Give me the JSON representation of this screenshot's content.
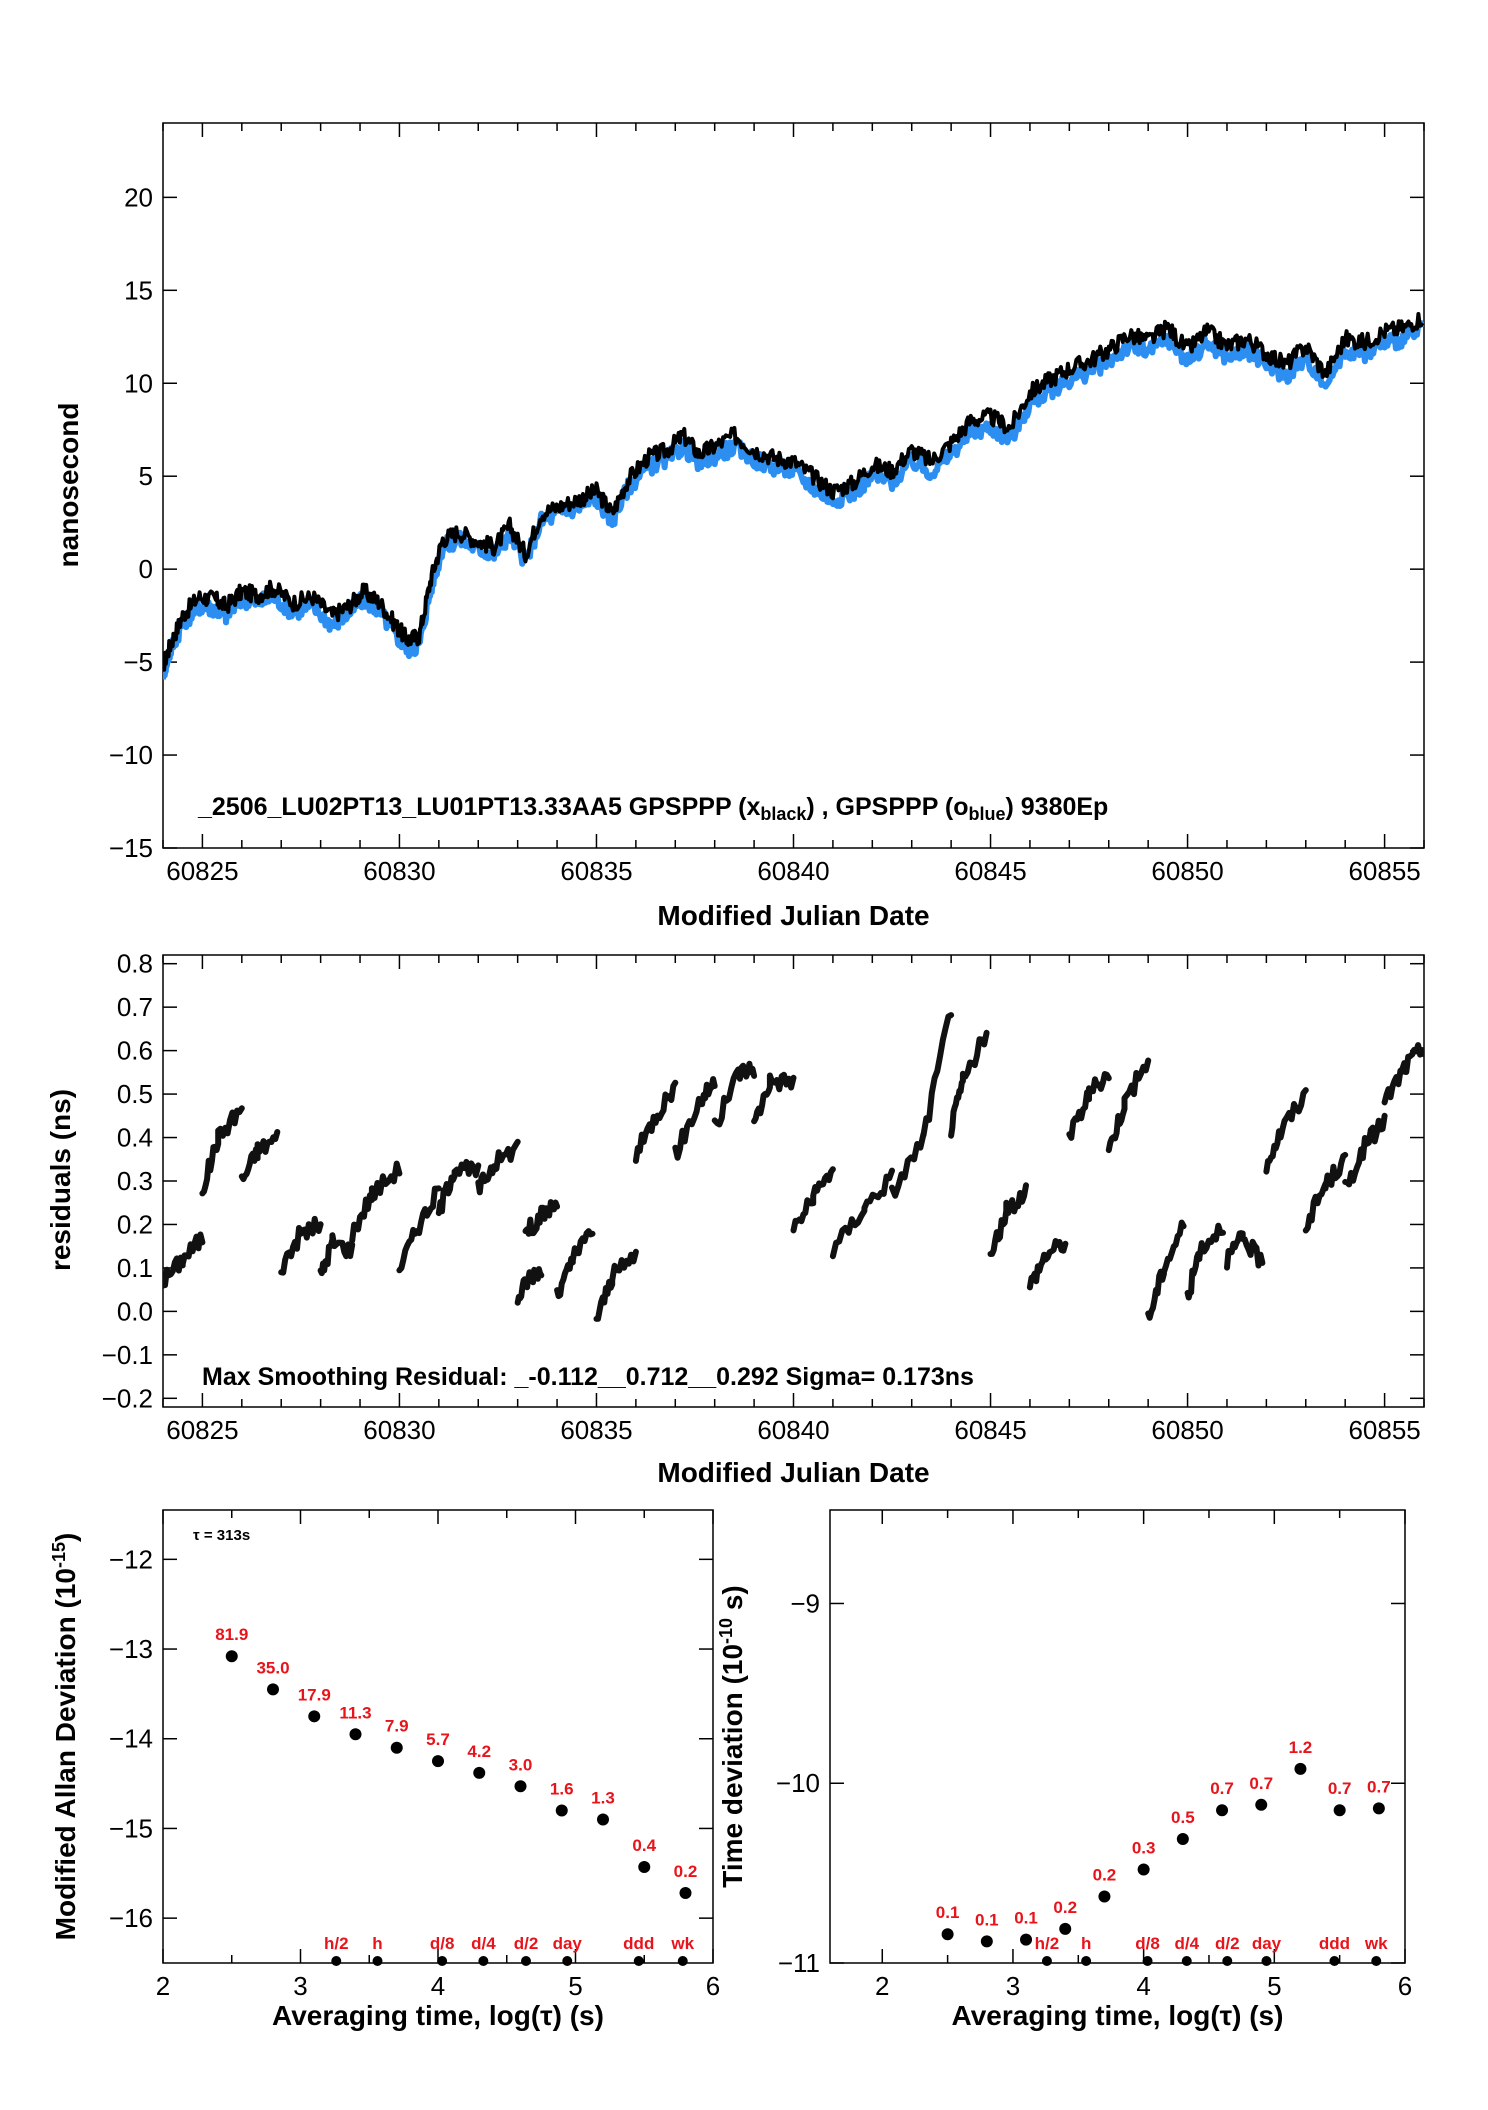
{
  "chart_data": [
    {
      "type": "line",
      "xlabel": "Modified Julian Date",
      "ylabel": "nanosecond",
      "xlim": [
        60824,
        60856
      ],
      "ylim": [
        -15,
        24
      ],
      "xticks": [
        60825,
        60830,
        60835,
        60840,
        60845,
        60850,
        60855
      ],
      "yticks": [
        -15,
        -10,
        -5,
        0,
        5,
        10,
        15,
        20
      ],
      "annotation": {
        "prefix": "_2506_LU02PT13_LU01PT13.33AA5     GPSPPP (x",
        "sub1": "black",
        "middle": ") ,  GPSPPP (o",
        "sub2": "blue",
        "suffix": ")  9380Ep"
      },
      "colors": {
        "black_series": "#000000",
        "blue_series": "#2b8ef0"
      },
      "series": [
        {
          "marker": "x",
          "color": "#000000",
          "x": [
            60824.0,
            60824.2,
            60824.5,
            60824.9,
            60825.3,
            60825.6,
            60826.0,
            60826.4,
            60826.8,
            60827.3,
            60827.8,
            60828.3,
            60828.7,
            60829.1,
            60829.5,
            60829.9,
            60830.2,
            60830.5,
            60830.8,
            60831.1,
            60831.5,
            60832.0,
            60832.4,
            60832.8,
            60833.2,
            60833.6,
            60834.1,
            60834.6,
            60835.0,
            60835.4,
            60835.8,
            60836.3,
            60836.8,
            60837.2,
            60837.6,
            60838.0,
            60838.5,
            60839.0,
            60839.5,
            60840.0,
            60840.5,
            60841.0,
            60841.5,
            60842.0,
            60842.5,
            60843.0,
            60843.5,
            60844.0,
            60844.5,
            60845.0,
            60845.5,
            60846.0,
            60846.5,
            60847.0,
            60847.5,
            60848.0,
            60848.5,
            60849.0,
            60849.5,
            60850.0,
            60850.5,
            60851.0,
            60851.5,
            60852.0,
            60852.5,
            60853.0,
            60853.5,
            60854.0,
            60854.5,
            60855.0,
            60855.5,
            60856.0
          ],
          "y": [
            -5.2,
            -4.0,
            -2.5,
            -1.5,
            -1.6,
            -2.0,
            -1.2,
            -1.4,
            -1.0,
            -1.8,
            -1.5,
            -2.5,
            -2.0,
            -1.2,
            -1.8,
            -3.0,
            -3.8,
            -3.6,
            -0.5,
            1.6,
            2.0,
            1.5,
            1.2,
            2.3,
            0.8,
            3.0,
            3.4,
            3.8,
            4.2,
            3.0,
            4.8,
            6.0,
            6.4,
            7.2,
            6.2,
            6.6,
            7.2,
            6.4,
            6.0,
            5.8,
            5.0,
            4.2,
            4.6,
            5.6,
            5.3,
            6.4,
            5.8,
            6.8,
            8.0,
            8.2,
            7.6,
            9.5,
            10.2,
            10.8,
            11.2,
            11.8,
            12.6,
            12.3,
            13.0,
            11.8,
            12.8,
            12.0,
            12.4,
            11.6,
            11.0,
            12.0,
            10.5,
            12.4,
            12.2,
            12.8,
            13.0,
            13.6
          ]
        },
        {
          "marker": "o",
          "color": "#2b8ef0",
          "x": [
            60824.0,
            60824.2,
            60824.5,
            60824.9,
            60825.3,
            60825.6,
            60826.0,
            60826.4,
            60826.8,
            60827.3,
            60827.8,
            60828.3,
            60828.7,
            60829.1,
            60829.5,
            60829.9,
            60830.2,
            60830.5,
            60830.8,
            60831.1,
            60831.5,
            60832.0,
            60832.4,
            60832.8,
            60833.2,
            60833.6,
            60834.1,
            60834.6,
            60835.0,
            60835.4,
            60835.8,
            60836.3,
            60836.8,
            60837.2,
            60837.6,
            60838.0,
            60838.5,
            60839.0,
            60839.5,
            60840.0,
            60840.5,
            60841.0,
            60841.5,
            60842.0,
            60842.5,
            60843.0,
            60843.5,
            60844.0,
            60844.5,
            60845.0,
            60845.5,
            60846.0,
            60846.5,
            60847.0,
            60847.5,
            60848.0,
            60848.5,
            60849.0,
            60849.5,
            60850.0,
            60850.5,
            60851.0,
            60851.5,
            60852.0,
            60852.5,
            60853.0,
            60853.5,
            60854.0,
            60854.5,
            60855.0,
            60855.5,
            60856.0
          ],
          "y": [
            -5.6,
            -4.3,
            -2.9,
            -2.0,
            -2.1,
            -2.5,
            -1.6,
            -1.8,
            -1.5,
            -2.3,
            -2.0,
            -3.0,
            -2.4,
            -1.6,
            -2.3,
            -3.5,
            -4.3,
            -4.1,
            -1.0,
            1.2,
            1.6,
            1.1,
            0.8,
            1.9,
            0.4,
            2.6,
            3.0,
            3.4,
            3.8,
            2.6,
            4.4,
            5.5,
            5.9,
            6.6,
            5.7,
            6.1,
            6.6,
            5.9,
            5.5,
            5.3,
            4.4,
            3.7,
            4.1,
            5.0,
            4.7,
            5.8,
            5.2,
            6.2,
            7.4,
            7.6,
            7.0,
            8.9,
            9.6,
            10.2,
            10.6,
            11.2,
            12.0,
            11.7,
            12.4,
            11.2,
            12.2,
            11.4,
            11.8,
            11.0,
            10.4,
            11.4,
            9.9,
            11.8,
            11.6,
            12.2,
            12.4,
            13.0
          ]
        }
      ]
    },
    {
      "type": "scatter",
      "xlabel": "Modified Julian Date",
      "ylabel": "residuals (ns)",
      "xlim": [
        60824,
        60856
      ],
      "ylim": [
        -0.22,
        0.82
      ],
      "xticks": [
        60825,
        60830,
        60835,
        60840,
        60845,
        60850,
        60855
      ],
      "yticks": [
        -0.2,
        -0.1,
        0.0,
        0.1,
        0.2,
        0.3,
        0.4,
        0.5,
        0.6,
        0.7,
        0.8
      ],
      "ytick_labels": [
        "−0.2",
        "−0.1",
        "0.0",
        "0.1",
        "0.2",
        "0.3",
        "0.4",
        "0.5",
        "0.6",
        "0.7",
        "0.8"
      ],
      "annotation": "Max Smoothing Residual: _-0.112__0.712__0.292  Sigma= 0.173ns",
      "marker": "x",
      "color": "#000000",
      "segments": [
        [
          [
            60824.0,
            0.07
          ],
          [
            60824.5,
            0.12
          ],
          [
            60825.0,
            0.17
          ]
        ],
        [
          [
            60825.0,
            0.28
          ],
          [
            60825.4,
            0.4
          ],
          [
            60826.0,
            0.47
          ]
        ],
        [
          [
            60826.0,
            0.3
          ],
          [
            60826.4,
            0.37
          ],
          [
            60826.9,
            0.4
          ]
        ],
        [
          [
            60827.0,
            0.1
          ],
          [
            60827.5,
            0.18
          ],
          [
            60828.0,
            0.2
          ]
        ],
        [
          [
            60828.0,
            0.08
          ],
          [
            60828.3,
            0.16
          ],
          [
            60828.8,
            0.14
          ]
        ],
        [
          [
            60828.8,
            0.18
          ],
          [
            60829.3,
            0.27
          ],
          [
            60830.0,
            0.33
          ]
        ],
        [
          [
            60830.0,
            0.1
          ],
          [
            60830.5,
            0.2
          ],
          [
            60831.0,
            0.28
          ]
        ],
        [
          [
            60831.0,
            0.23
          ],
          [
            60831.4,
            0.33
          ],
          [
            60832.0,
            0.32
          ]
        ],
        [
          [
            60832.0,
            0.28
          ],
          [
            60832.4,
            0.34
          ],
          [
            60833.0,
            0.38
          ]
        ],
        [
          [
            60833.0,
            0.03
          ],
          [
            60833.3,
            0.08
          ],
          [
            60833.6,
            0.1
          ]
        ],
        [
          [
            60833.2,
            0.18
          ],
          [
            60833.6,
            0.22
          ],
          [
            60834.0,
            0.25
          ]
        ],
        [
          [
            60834.0,
            0.03
          ],
          [
            60834.4,
            0.12
          ],
          [
            60834.9,
            0.19
          ]
        ],
        [
          [
            60835.0,
            -0.02
          ],
          [
            60835.4,
            0.08
          ],
          [
            60836.0,
            0.13
          ]
        ],
        [
          [
            60836.0,
            0.36
          ],
          [
            60836.5,
            0.45
          ],
          [
            60837.0,
            0.52
          ]
        ],
        [
          [
            60837.0,
            0.36
          ],
          [
            60837.6,
            0.48
          ],
          [
            60838.0,
            0.53
          ]
        ],
        [
          [
            60838.0,
            0.42
          ],
          [
            60838.6,
            0.55
          ],
          [
            60839.0,
            0.56
          ]
        ],
        [
          [
            60839.0,
            0.43
          ],
          [
            60839.4,
            0.53
          ],
          [
            60840.0,
            0.53
          ]
        ],
        [
          [
            60840.0,
            0.19
          ],
          [
            60840.5,
            0.26
          ],
          [
            60841.0,
            0.33
          ]
        ],
        [
          [
            60841.0,
            0.14
          ],
          [
            60841.8,
            0.24
          ],
          [
            60842.5,
            0.31
          ]
        ],
        [
          [
            60842.5,
            0.27
          ],
          [
            60843.3,
            0.4
          ],
          [
            60844.0,
            0.7
          ]
        ],
        [
          [
            60844.0,
            0.42
          ],
          [
            60844.3,
            0.53
          ],
          [
            60844.9,
            0.64
          ]
        ],
        [
          [
            60845.0,
            0.12
          ],
          [
            60845.4,
            0.23
          ],
          [
            60845.9,
            0.28
          ]
        ],
        [
          [
            60846.0,
            0.06
          ],
          [
            60846.4,
            0.13
          ],
          [
            60846.9,
            0.16
          ]
        ],
        [
          [
            60847.0,
            0.4
          ],
          [
            60847.5,
            0.5
          ],
          [
            60848.0,
            0.55
          ]
        ],
        [
          [
            60848.0,
            0.37
          ],
          [
            60848.4,
            0.48
          ],
          [
            60849.0,
            0.58
          ]
        ],
        [
          [
            60849.0,
            -0.02
          ],
          [
            60849.4,
            0.1
          ],
          [
            60849.9,
            0.2
          ]
        ],
        [
          [
            60850.0,
            0.03
          ],
          [
            60850.3,
            0.14
          ],
          [
            60850.9,
            0.2
          ]
        ],
        [
          [
            60851.0,
            0.12
          ],
          [
            60851.4,
            0.17
          ],
          [
            60851.9,
            0.11
          ]
        ],
        [
          [
            60852.0,
            0.34
          ],
          [
            60852.4,
            0.42
          ],
          [
            60853.0,
            0.5
          ]
        ],
        [
          [
            60853.0,
            0.2
          ],
          [
            60853.5,
            0.29
          ],
          [
            60854.0,
            0.35
          ]
        ],
        [
          [
            60854.0,
            0.28
          ],
          [
            60854.5,
            0.38
          ],
          [
            60855.0,
            0.44
          ]
        ],
        [
          [
            60855.0,
            0.48
          ],
          [
            60855.5,
            0.56
          ],
          [
            60856.0,
            0.61
          ]
        ]
      ]
    },
    {
      "type": "scatter",
      "xlabel": "Averaging time, log(τ) (s)",
      "ylabel_main": "Modified Allan Deviation (10",
      "ylabel_sup": "-15",
      "ylabel_end": ")",
      "xlim": [
        2,
        6
      ],
      "ylim": [
        -16.5,
        -11.45
      ],
      "xticks": [
        2,
        3,
        4,
        5,
        6
      ],
      "yticks": [
        -16,
        -15,
        -14,
        -13,
        -12
      ],
      "ytick_labels": [
        "−16",
        "−15",
        "−14",
        "−13",
        "−12"
      ],
      "tau_note": "τ = 313s",
      "points": [
        {
          "x": 2.5,
          "y": -13.08,
          "label": "81.9"
        },
        {
          "x": 2.8,
          "y": -13.45,
          "label": "35.0"
        },
        {
          "x": 3.1,
          "y": -13.75,
          "label": "17.9"
        },
        {
          "x": 3.4,
          "y": -13.95,
          "label": "11.3"
        },
        {
          "x": 3.7,
          "y": -14.1,
          "label": "7.9"
        },
        {
          "x": 4.0,
          "y": -14.25,
          "label": "5.7"
        },
        {
          "x": 4.3,
          "y": -14.38,
          "label": "4.2"
        },
        {
          "x": 4.6,
          "y": -14.53,
          "label": "3.0"
        },
        {
          "x": 4.9,
          "y": -14.8,
          "label": "1.6"
        },
        {
          "x": 5.2,
          "y": -14.9,
          "label": "1.3"
        },
        {
          "x": 5.5,
          "y": -15.43,
          "label": "0.4"
        },
        {
          "x": 5.8,
          "y": -15.72,
          "label": "0.2"
        }
      ],
      "interval_marks": [
        {
          "x": 3.26,
          "label": "h/2"
        },
        {
          "x": 3.56,
          "label": "h"
        },
        {
          "x": 4.03,
          "label": "d/8"
        },
        {
          "x": 4.33,
          "label": "d/4"
        },
        {
          "x": 4.64,
          "label": "d/2"
        },
        {
          "x": 4.94,
          "label": "day"
        },
        {
          "x": 5.46,
          "label": "ddd"
        },
        {
          "x": 5.78,
          "label": "wk"
        }
      ]
    },
    {
      "type": "scatter",
      "xlabel": "Averaging time, log(τ) (s)",
      "ylabel_main": "Time deviation (10",
      "ylabel_sup": "-10",
      "ylabel_end": " s)",
      "xlim": [
        1.6,
        6
      ],
      "ylim": [
        -11,
        -8.48
      ],
      "xticks": [
        2,
        3,
        4,
        5,
        6
      ],
      "yticks": [
        -11,
        -10,
        -9
      ],
      "ytick_labels": [
        "−11",
        "−10",
        "−9"
      ],
      "points": [
        {
          "x": 2.5,
          "y": -10.84,
          "label": "0.1"
        },
        {
          "x": 2.8,
          "y": -10.88,
          "label": "0.1"
        },
        {
          "x": 3.1,
          "y": -10.87,
          "label": "0.1"
        },
        {
          "x": 3.4,
          "y": -10.81,
          "label": "0.2"
        },
        {
          "x": 3.7,
          "y": -10.63,
          "label": "0.2"
        },
        {
          "x": 4.0,
          "y": -10.48,
          "label": "0.3"
        },
        {
          "x": 4.3,
          "y": -10.31,
          "label": "0.5"
        },
        {
          "x": 4.6,
          "y": -10.15,
          "label": "0.7"
        },
        {
          "x": 4.9,
          "y": -10.12,
          "label": "0.7"
        },
        {
          "x": 5.2,
          "y": -9.92,
          "label": "1.2"
        },
        {
          "x": 5.5,
          "y": -10.15,
          "label": "0.7"
        },
        {
          "x": 5.8,
          "y": -10.14,
          "label": "0.7"
        }
      ],
      "interval_marks": [
        {
          "x": 3.26,
          "label": "h/2"
        },
        {
          "x": 3.56,
          "label": "h"
        },
        {
          "x": 4.03,
          "label": "d/8"
        },
        {
          "x": 4.33,
          "label": "d/4"
        },
        {
          "x": 4.64,
          "label": "d/2"
        },
        {
          "x": 4.94,
          "label": "day"
        },
        {
          "x": 5.46,
          "label": "ddd"
        },
        {
          "x": 5.78,
          "label": "wk"
        }
      ]
    }
  ]
}
